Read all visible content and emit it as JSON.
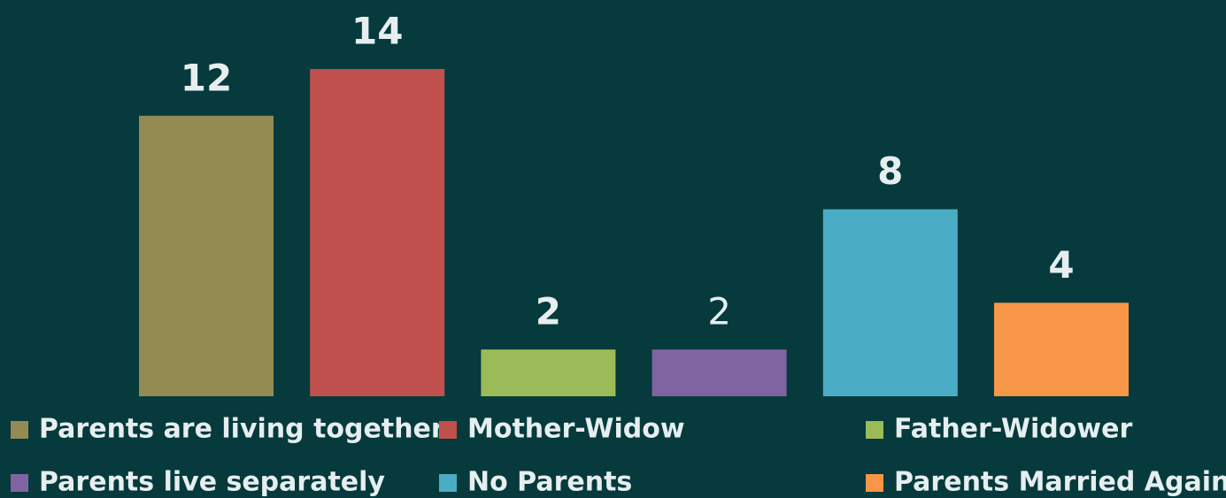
{
  "chart_data": {
    "type": "bar",
    "series": [
      {
        "name": "Parents are living together",
        "color": "#938b52",
        "values": [
          12
        ]
      },
      {
        "name": "Mother-Widow",
        "color": "#c0504d",
        "values": [
          14
        ]
      },
      {
        "name": "Father-Widower",
        "color": "#9bbb59",
        "values": [
          2
        ]
      },
      {
        "name": "Parents live separately",
        "color": "#8064a2",
        "values": [
          2
        ]
      },
      {
        "name": "No Parents",
        "color": "#4bacc6",
        "values": [
          8
        ]
      },
      {
        "name": "Parents Married Again",
        "color": "#f79646",
        "values": [
          4
        ]
      }
    ],
    "ylim": [
      0,
      14
    ]
  }
}
